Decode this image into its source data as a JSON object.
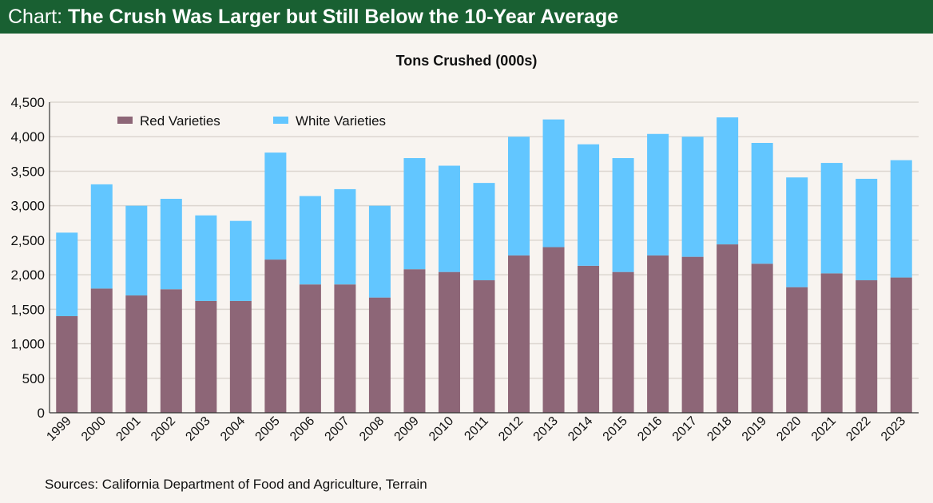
{
  "header": {
    "prefix": "Chart:",
    "title": "The Crush Was Larger but Still Below the 10-Year Average"
  },
  "source": "Sources: California Department of Food and Agriculture, Terrain",
  "chart_data": {
    "type": "bar",
    "stacked": true,
    "title": "Tons Crushed (000s)",
    "xlabel": "",
    "ylabel": "",
    "ylim": [
      0,
      4500
    ],
    "yticks": [
      0,
      500,
      1000,
      1500,
      2000,
      2500,
      3000,
      3500,
      4000,
      4500
    ],
    "ytick_labels": [
      "0",
      "500",
      "1,000",
      "1,500",
      "2,000",
      "2,500",
      "3,000",
      "3,500",
      "4,000",
      "4,500"
    ],
    "grid": true,
    "legend_position": "top-left",
    "categories": [
      "1999",
      "2000",
      "2001",
      "2002",
      "2003",
      "2004",
      "2005",
      "2006",
      "2007",
      "2008",
      "2009",
      "2010",
      "2011",
      "2012",
      "2013",
      "2014",
      "2015",
      "2016",
      "2017",
      "2018",
      "2019",
      "2020",
      "2021",
      "2022",
      "2023"
    ],
    "series": [
      {
        "name": "Red Varieties",
        "color": "#8d6677",
        "values": [
          1400,
          1800,
          1700,
          1790,
          1620,
          1620,
          2220,
          1860,
          1860,
          1670,
          2080,
          2040,
          1920,
          2280,
          2400,
          2130,
          2040,
          2280,
          2260,
          2440,
          2160,
          1820,
          2020,
          1920,
          1960
        ]
      },
      {
        "name": "White Varieties",
        "color": "#62c6ff",
        "values": [
          1210,
          1510,
          1300,
          1310,
          1240,
          1160,
          1550,
          1280,
          1380,
          1330,
          1610,
          1540,
          1410,
          1720,
          1850,
          1760,
          1650,
          1760,
          1740,
          1840,
          1750,
          1590,
          1600,
          1470,
          1700
        ]
      }
    ]
  }
}
